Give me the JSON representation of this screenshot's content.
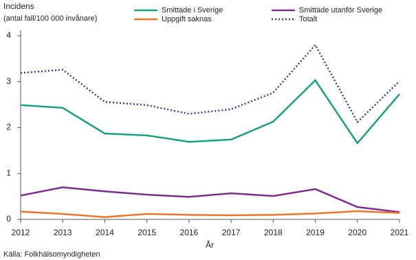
{
  "chart_data": {
    "type": "line",
    "title": "Incidens",
    "subtitle": "(antal fall/100 000 invånare)",
    "x_label": "År",
    "source": "Källa: Folkhälsomyndigheten",
    "categories": [
      "2012",
      "2013",
      "2014",
      "2015",
      "2016",
      "2017",
      "2018",
      "2019",
      "2020",
      "2021"
    ],
    "series": [
      {
        "name": "Smittade i Sverige",
        "color": "#17a07e",
        "style": "solid",
        "values": [
          2.49,
          2.43,
          1.87,
          1.83,
          1.69,
          1.74,
          2.13,
          3.03,
          1.66,
          2.73
        ]
      },
      {
        "name": "Smittade utanför Sverige",
        "color": "#7b2d8e",
        "style": "solid",
        "values": [
          0.52,
          0.7,
          0.61,
          0.54,
          0.49,
          0.57,
          0.51,
          0.66,
          0.27,
          0.16
        ]
      },
      {
        "name": "Uppgift saknas",
        "color": "#e8762b",
        "style": "solid",
        "values": [
          0.17,
          0.12,
          0.05,
          0.12,
          0.1,
          0.09,
          0.1,
          0.13,
          0.18,
          0.14
        ]
      },
      {
        "name": "Totalt",
        "color": "#2b4190",
        "style": "dotted",
        "values": [
          3.19,
          3.26,
          2.56,
          2.49,
          2.3,
          2.4,
          2.76,
          3.8,
          2.12,
          3.01
        ]
      }
    ],
    "ylim": [
      0,
      4
    ],
    "yticks": [
      0,
      1,
      2,
      3,
      4
    ],
    "grid": false
  }
}
